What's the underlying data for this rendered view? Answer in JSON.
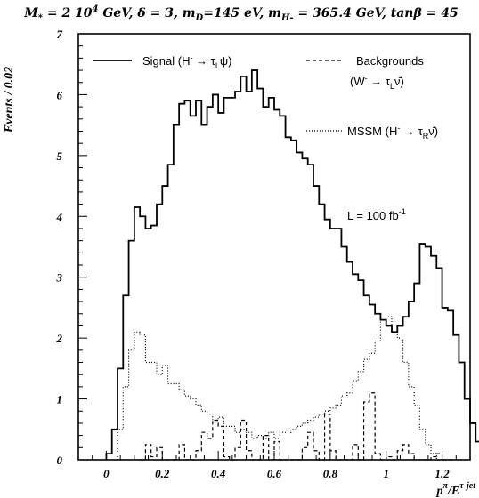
{
  "chart_data": {
    "type": "line",
    "title": "M* = 2 10^4 GeV, δ = 3, mD=145 eV, mH- = 365.4 GeV, tanβ = 45",
    "title_parts": {
      "M": "M",
      "star": "*",
      "eq1": " = 2 10",
      "exp4": "4",
      "gev1": " GeV, δ = 3, m",
      "D": "D",
      "eq2": "=145 eV, m",
      "H": "H-",
      "eq3": " = 365.4 GeV, tan",
      "beta": "β",
      "eq4": " = 45"
    },
    "ylabel": "Events / 0.02",
    "xlabel": "pπ/Eτ-jet",
    "xlabel_parts": {
      "p": "p",
      "pi": "π",
      "slash": "/E",
      "tau": "τ-jet"
    },
    "xlim": [
      -0.1,
      1.3
    ],
    "ylim": [
      0,
      7
    ],
    "x_ticks": [
      0,
      0.2,
      0.4,
      0.6,
      0.8,
      1,
      1.2
    ],
    "x_tick_labels": [
      "0",
      "0.2",
      "0.4",
      "0.6",
      "0.8",
      "1",
      "1.2"
    ],
    "y_ticks": [
      0,
      1,
      2,
      3,
      4,
      5,
      6,
      7
    ],
    "y_tick_labels": [
      "0",
      "1",
      "2",
      "3",
      "4",
      "5",
      "6",
      "7"
    ],
    "bin_width": 0.02,
    "grid": false,
    "luminosity_parts": {
      "pre": "L = 100 fb",
      "exp": "-1"
    },
    "legend": [
      {
        "label_main": "Signal (H",
        "label_sup": "-",
        "label_arrow": " → τ",
        "label_sub": "L",
        "label_end": "ψ)",
        "style": "solid"
      },
      {
        "label_main": "Backgrounds",
        "label_line2_main": "(W",
        "label_line2_sup": "-",
        "label_line2_arrow": " → τ",
        "label_line2_sub": "L",
        "label_line2_end": "ν̄)",
        "style": "dashed"
      },
      {
        "label_main": "MSSM (H",
        "label_sup": "-",
        "label_arrow": " → τ",
        "label_sub": "R",
        "label_end": "ν̄)",
        "style": "dotted"
      }
    ],
    "series": [
      {
        "name": "Signal",
        "style": "solid",
        "x_start": 0.0,
        "values": [
          0.1,
          0.5,
          1.5,
          2.7,
          3.6,
          4.15,
          4.0,
          3.8,
          3.85,
          4.2,
          4.5,
          4.85,
          5.5,
          5.85,
          5.9,
          5.65,
          5.9,
          5.5,
          5.8,
          6.0,
          5.7,
          5.95,
          5.95,
          6.05,
          6.3,
          6.05,
          6.4,
          6.1,
          5.8,
          5.95,
          5.75,
          5.65,
          5.3,
          5.25,
          5.05,
          4.95,
          4.85,
          4.5,
          4.2,
          3.95,
          3.8,
          3.8,
          3.5,
          3.25,
          3.05,
          2.95,
          2.7,
          2.55,
          2.4,
          2.3,
          2.2,
          2.1,
          2.2,
          2.35,
          2.6,
          2.9,
          3.55,
          3.5,
          3.35,
          3.15,
          2.5,
          2.45,
          2.05,
          1.6,
          1.0,
          0.6,
          0.3,
          0.2,
          0.0
        ]
      },
      {
        "name": "Backgrounds",
        "style": "dashed",
        "x_start": 0.12,
        "values": [
          0.0,
          0.25,
          0.05,
          0.2,
          0.0,
          0.0,
          0.0,
          0.25,
          0.0,
          0.0,
          0.15,
          0.45,
          0.35,
          0.65,
          0.55,
          0.05,
          0.0,
          0.2,
          0.65,
          0.15,
          0.0,
          0.0,
          0.4,
          0.0,
          0.3,
          0.0,
          0.0,
          0.0,
          0.0,
          0.2,
          0.45,
          0.15,
          0.0,
          0.75,
          0.15,
          0.0,
          0.0,
          0.0,
          0.25,
          0.0,
          0.95,
          1.1,
          0.1,
          0.0,
          0.05,
          0.0,
          0.15,
          0.25,
          0.1,
          0.0,
          0.0,
          0.0,
          0.05,
          0.1,
          0.0,
          0.0
        ]
      },
      {
        "name": "MSSM",
        "style": "dotted",
        "x_start": 0.04,
        "values": [
          0.5,
          1.2,
          1.8,
          2.1,
          2.05,
          1.6,
          1.6,
          1.4,
          1.55,
          1.25,
          1.25,
          1.15,
          1.05,
          1.0,
          0.9,
          0.8,
          0.75,
          0.65,
          0.7,
          0.55,
          0.55,
          0.45,
          0.5,
          0.45,
          0.35,
          0.4,
          0.35,
          0.45,
          0.35,
          0.45,
          0.45,
          0.5,
          0.55,
          0.6,
          0.65,
          0.7,
          0.75,
          0.8,
          0.85,
          0.9,
          1.05,
          1.1,
          1.3,
          1.45,
          1.65,
          1.75,
          1.95,
          2.3,
          2.35,
          2.1,
          2.0,
          1.6,
          1.2,
          0.9,
          0.5,
          0.25,
          0.1,
          0.0
        ]
      }
    ]
  }
}
